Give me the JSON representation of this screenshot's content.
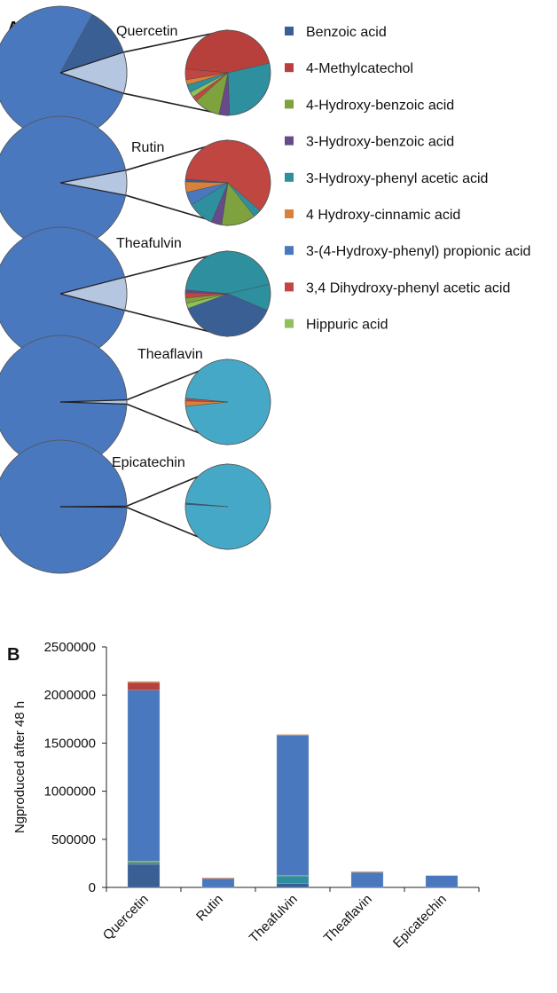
{
  "panels": {
    "a": "A",
    "b": "B"
  },
  "colors": {
    "Benzoic acid": "#3a5f95",
    "4-Methylcatechol": "#b8403c",
    "4-Hydroxy-benzoic acid": "#7ea23e",
    "3-Hydroxy-benzoic acid": "#664a8a",
    "3-Hydroxy-phenyl acetic acid": "#2e8f9f",
    "4 Hydroxy-cinnamic acid": "#d9803a",
    "3-(4-Hydroxy-phenyl) propionic acid": "#4a78be",
    "3,4 Dihydroxy-phenyl acetic acid": "#c04641",
    "Hippuric acid": "#8fc05a",
    "expanded_slice": "#b5c6e0",
    "teal_light": "#45a8c6",
    "teal_mid": "#37879d"
  },
  "legend": [
    "Benzoic acid",
    "4-Methylcatechol",
    "4-Hydroxy-benzoic acid",
    "3-Hydroxy-benzoic acid",
    "3-Hydroxy-phenyl acetic acid",
    "4 Hydroxy-cinnamic acid",
    "3-(4-Hydroxy-phenyl) propionic acid",
    "3,4 Dihydroxy-phenyl acetic acid",
    "Hippuric acid"
  ],
  "chart_data": [
    {
      "type": "pie",
      "panel": "A",
      "pies": [
        {
          "title": "Quercetin",
          "main": [
            {
              "name": "3-(4-Hydroxy-phenyl) propionic acid",
              "value": 78
            },
            {
              "name": "Benzoic acid",
              "value": 12
            },
            {
              "name": "other (expanded)",
              "value": 10
            }
          ],
          "detail": [
            {
              "name": "4-Methylcatechol",
              "value": 45
            },
            {
              "name": "3-Hydroxy-phenyl acetic acid",
              "value": 28
            },
            {
              "name": "3-Hydroxy-benzoic acid",
              "value": 4
            },
            {
              "name": "4-Hydroxy-benzoic acid",
              "value": 10
            },
            {
              "name": "3,4 Dihydroxy-phenyl acetic acid",
              "value": 2
            },
            {
              "name": "Hippuric acid",
              "value": 2
            },
            {
              "name": "3-Hydroxy-phenyl acetic acid",
              "value": 3
            },
            {
              "name": "4 Hydroxy-cinnamic acid",
              "value": 2
            },
            {
              "name": "3,4 Dihydroxy-phenyl acetic acid",
              "value": 4
            }
          ]
        },
        {
          "title": "Rutin",
          "main": [
            {
              "name": "3-(4-Hydroxy-phenyl) propionic acid",
              "value": 94
            },
            {
              "name": "other (expanded)",
              "value": 6
            }
          ],
          "detail": [
            {
              "name": "3,4 Dihydroxy-phenyl acetic acid",
              "value": 60
            },
            {
              "name": "3-Hydroxy-phenyl acetic acid",
              "value": 3
            },
            {
              "name": "4-Hydroxy-benzoic acid",
              "value": 13
            },
            {
              "name": "3-Hydroxy-benzoic acid",
              "value": 4
            },
            {
              "name": "3-Hydroxy-phenyl acetic acid",
              "value": 10
            },
            {
              "name": "3-(4-Hydroxy-phenyl) propionic acid",
              "value": 5
            },
            {
              "name": "4 Hydroxy-cinnamic acid",
              "value": 4
            },
            {
              "name": "Benzoic acid",
              "value": 1
            }
          ]
        },
        {
          "title": "Theafulvin",
          "main": [
            {
              "name": "3-(4-Hydroxy-phenyl) propionic acid",
              "value": 92
            },
            {
              "name": "other (expanded)",
              "value": 8
            }
          ],
          "detail": [
            {
              "name": "3-Hydroxy-phenyl acetic acid",
              "value": 45
            },
            {
              "name": "3-Hydroxy-phenyl acetic acid",
              "value": 10
            },
            {
              "name": "Benzoic acid",
              "value": 38
            },
            {
              "name": "Hippuric acid",
              "value": 2
            },
            {
              "name": "4-Hydroxy-benzoic acid",
              "value": 2
            },
            {
              "name": "3,4 Dihydroxy-phenyl acetic acid",
              "value": 2
            },
            {
              "name": "3-Hydroxy-benzoic acid",
              "value": 1
            }
          ]
        },
        {
          "title": "Theaflavin",
          "main": [
            {
              "name": "3-(4-Hydroxy-phenyl) propionic acid",
              "value": 99
            },
            {
              "name": "other (expanded)",
              "value": 1
            }
          ],
          "detail": [
            {
              "name": "3-Hydroxy-phenyl acetic acid",
              "value": 97
            },
            {
              "name": "4 Hydroxy-cinnamic acid",
              "value": 2
            },
            {
              "name": "3,4 Dihydroxy-phenyl acetic acid",
              "value": 1
            }
          ]
        },
        {
          "title": "Epicatechin",
          "main": [
            {
              "name": "3-(4-Hydroxy-phenyl) propionic acid",
              "value": 99.7
            },
            {
              "name": "other (expanded)",
              "value": 0.3
            }
          ],
          "detail": [
            {
              "name": "3-Hydroxy-phenyl acetic acid",
              "value": 99.5
            },
            {
              "name": "Benzoic acid",
              "value": 0.5
            }
          ]
        }
      ]
    },
    {
      "type": "bar",
      "panel": "B",
      "stacked": true,
      "categories": [
        "Quercetin",
        "Rutin",
        "Theafulvin",
        "Theaflavin",
        "Epicatechin"
      ],
      "ylabel": "Ngproduced after 48 h",
      "ylim": [
        0,
        2500000
      ],
      "yticks": [
        0,
        500000,
        1000000,
        1500000,
        2000000,
        2500000
      ],
      "series": [
        {
          "name": "Benzoic acid",
          "values": [
            240000,
            0,
            40000,
            0,
            0
          ]
        },
        {
          "name": "3-Hydroxy-phenyl acetic acid",
          "values": [
            20000,
            0,
            80000,
            0,
            0
          ]
        },
        {
          "name": "4-Hydroxy-benzoic acid",
          "values": [
            15000,
            0,
            5000,
            0,
            0
          ]
        },
        {
          "name": "3-(4-Hydroxy-phenyl) propionic acid",
          "values": [
            1775000,
            90000,
            1455000,
            158000,
            123000
          ]
        },
        {
          "name": "4-Methylcatechol",
          "values": [
            80000,
            5000,
            0,
            0,
            0
          ]
        },
        {
          "name": "4 Hydroxy-cinnamic acid",
          "values": [
            10000,
            5000,
            10000,
            5000,
            0
          ]
        }
      ]
    }
  ]
}
